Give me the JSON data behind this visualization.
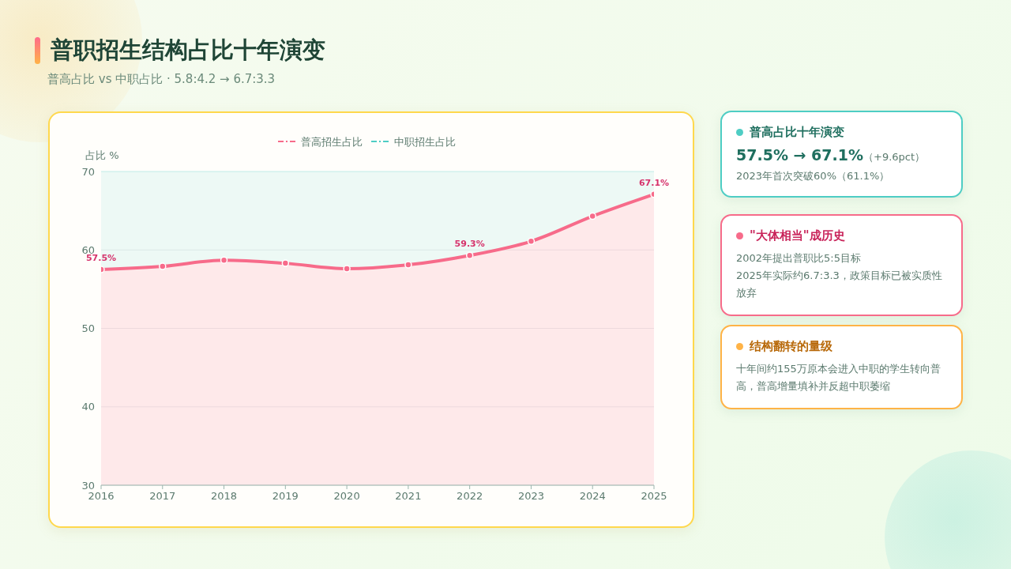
{
  "chart_data": [
    {
      "type": "area",
      "title": "普职招生结构占比十年演变",
      "subtitle": "普高占比 vs 中职占比 · 5.8:4.2 → 6.7:3.3",
      "ylabel": "占比 %",
      "categories": [
        "2016",
        "2017",
        "2018",
        "2019",
        "2020",
        "2021",
        "2022",
        "2023",
        "2024",
        "2025"
      ],
      "ylim": [
        30,
        70
      ],
      "yticks": [
        30,
        40,
        50,
        60,
        70
      ],
      "grid": "y",
      "legend": "top",
      "marker": "circle",
      "line_style": "solid",
      "series": [
        {
          "name": "普高招生占比",
          "color": "#f76b8a",
          "values": [
            57.5,
            57.9,
            58.7,
            58.3,
            57.6,
            58.1,
            59.3,
            61.1,
            64.3,
            67.1
          ],
          "value_labels": [
            "57.5%",
            null,
            null,
            null,
            null,
            null,
            "59.3%",
            null,
            null,
            "67.1%"
          ]
        },
        {
          "name": "中职招生占比",
          "color": "#4ecdc4",
          "values": [
            null,
            null,
            null,
            null,
            null,
            null,
            null,
            null,
            null,
            null
          ],
          "lower": [
            57.5,
            57.9,
            58.7,
            58.3,
            57.6,
            58.1,
            59.3,
            61.1,
            64.3,
            67.1
          ],
          "upper": [
            70,
            70,
            70,
            70,
            70,
            70,
            70,
            70,
            70,
            70
          ]
        }
      ]
    },
    {
      "type": "other",
      "title": "普高占比十年演变",
      "annotations": [
        "57.5% → 67.1%",
        "（+9.6pct）",
        "2023年首次突破60%（61.1%）"
      ]
    },
    {
      "type": "other",
      "title": "\"大体相当\"成历史",
      "annotations": [
        "2002年提出普职比5:5目标",
        "2025年实际约6.7:3.3，政策目标已被实质性放弃"
      ]
    },
    {
      "type": "other",
      "title": "结构翻转的量级",
      "annotations": [
        "十年间约155万原本会进入中职的学生转向普高，普高增量填补并反超中职萎缩"
      ]
    }
  ]
}
